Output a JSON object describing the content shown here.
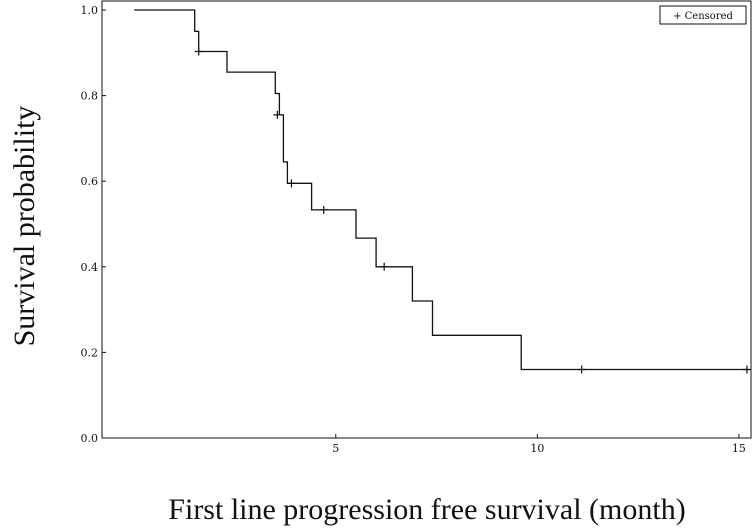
{
  "chart_data": {
    "type": "line",
    "title": "",
    "xlabel": "First line progression free survival (month)",
    "ylabel": "Survival probability",
    "xlim": [
      -0.8,
      15.3
    ],
    "ylim": [
      0.0,
      1.0
    ],
    "x_ticks": [
      {
        "value": 5,
        "label": "5"
      },
      {
        "value": 10,
        "label": "10"
      },
      {
        "value": 15,
        "label": "15"
      }
    ],
    "y_ticks": [
      {
        "value": 0.0,
        "label": "0.0"
      },
      {
        "value": 0.2,
        "label": "0.2"
      },
      {
        "value": 0.4,
        "label": "0.4"
      },
      {
        "value": 0.6,
        "label": "0.6"
      },
      {
        "value": 0.8,
        "label": "0.8"
      },
      {
        "value": 1.0,
        "label": "1.0"
      }
    ],
    "grid": false,
    "legend": {
      "position": "top-right",
      "label": "+ Censored"
    },
    "series": [
      {
        "style": "step",
        "x": [
          0.0,
          1.5,
          1.6,
          2.3,
          3.5,
          3.6,
          3.7,
          3.8,
          4.4,
          5.5,
          6.0,
          6.9,
          7.4,
          9.6,
          15.2
        ],
        "y": [
          1.0,
          0.95,
          0.903,
          0.855,
          0.805,
          0.755,
          0.645,
          0.595,
          0.533,
          0.467,
          0.4,
          0.32,
          0.24,
          0.16,
          0.16
        ]
      }
    ],
    "censored": [
      {
        "x": 1.6,
        "y": 0.903
      },
      {
        "x": 3.55,
        "y": 0.755
      },
      {
        "x": 3.9,
        "y": 0.595
      },
      {
        "x": 4.7,
        "y": 0.533
      },
      {
        "x": 6.2,
        "y": 0.4
      },
      {
        "x": 11.1,
        "y": 0.16
      },
      {
        "x": 15.2,
        "y": 0.16
      }
    ],
    "colors": {
      "line": "#111111",
      "background": "#ffffff"
    }
  }
}
